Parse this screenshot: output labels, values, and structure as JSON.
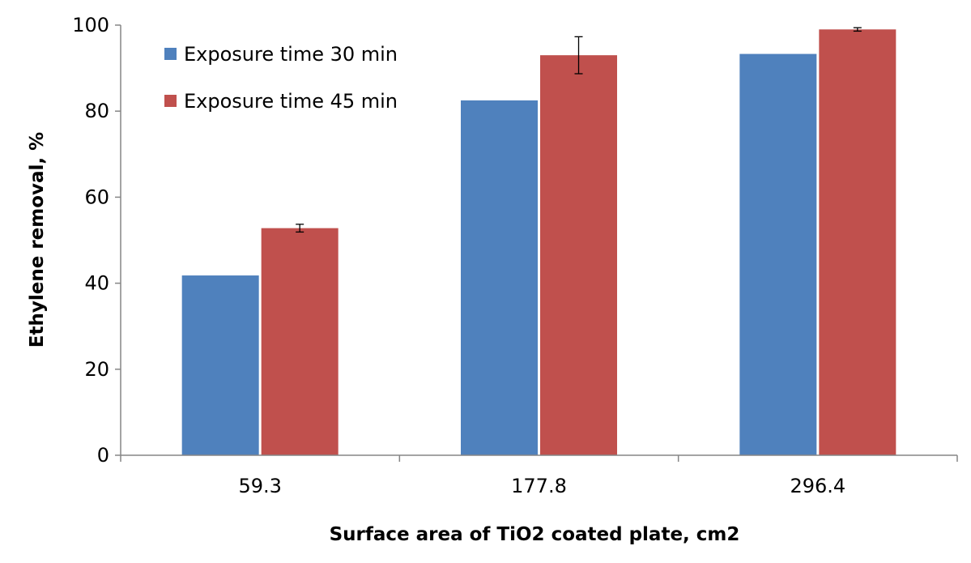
{
  "chart_data": {
    "type": "bar",
    "title": "",
    "xlabel": "Surface area of TiO2 coated plate, cm2",
    "ylabel": "Ethylene removal, %",
    "categories": [
      "59.3",
      "177.8",
      "296.4"
    ],
    "ylim": [
      0,
      100
    ],
    "yticks": [
      0,
      20,
      40,
      60,
      80,
      100
    ],
    "grid": false,
    "legend_position": "top-left",
    "series": [
      {
        "name": "Exposure time 30 min",
        "color": "#4F81BD",
        "values": [
          41.8,
          82.5,
          93.3
        ],
        "error": null
      },
      {
        "name": "Exposure time 45 min",
        "color": "#C0504D",
        "values": [
          52.8,
          93.0,
          99.0
        ],
        "error": [
          0.9,
          4.3,
          0.4
        ]
      }
    ]
  }
}
